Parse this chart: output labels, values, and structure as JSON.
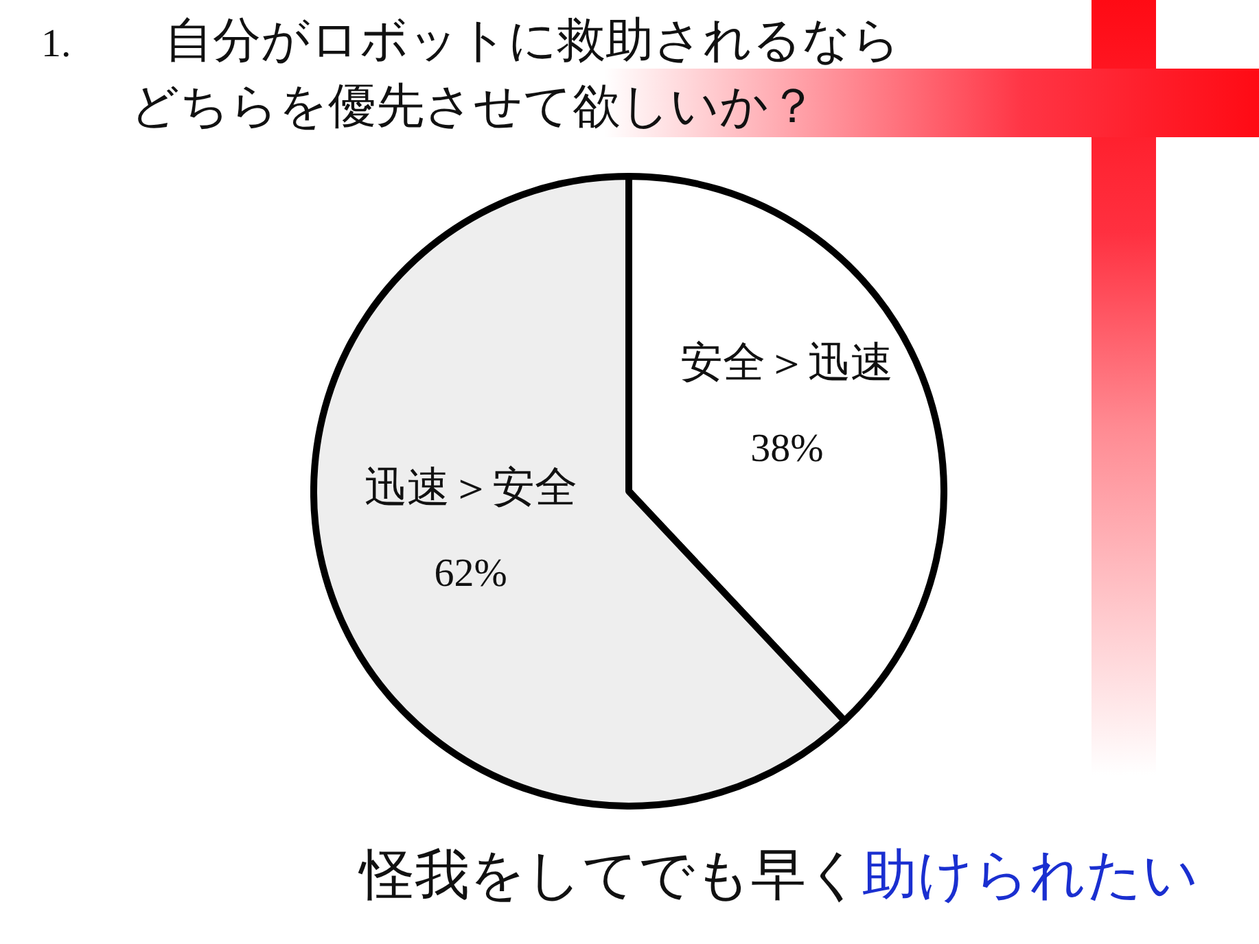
{
  "chart_data": {
    "type": "pie",
    "title": "1. 自分がロボットに救助されるならどちらを優先させて欲しいか？",
    "categories": [
      "安全＞迅速",
      "迅速＞安全"
    ],
    "values": [
      38,
      62
    ],
    "colors": [
      "#ffffff",
      "#eeeeee"
    ],
    "value_labels": [
      "38%",
      "62%"
    ],
    "annotations": [
      "怪我をしてでも早く",
      "助けられたい"
    ]
  }
}
